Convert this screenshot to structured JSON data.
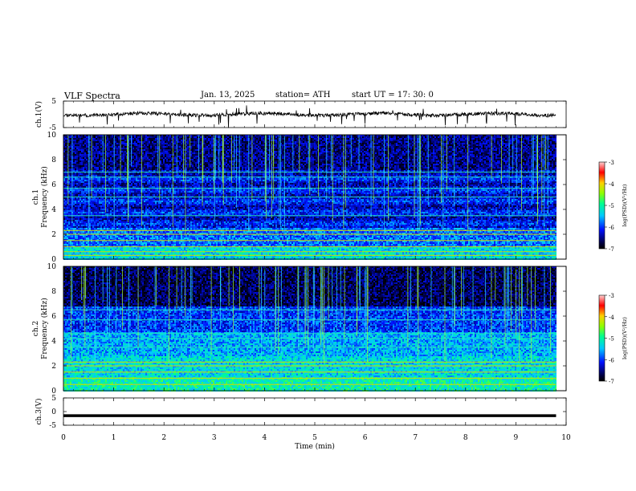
{
  "header": {
    "title": "VLF  Spectra",
    "date": "Jan. 13, 2025",
    "station": "station= ATH",
    "start": "start  UT  =   17: 30: 0"
  },
  "chart_data": [
    {
      "type": "line",
      "name": "ch1-waveform",
      "ylabel": "ch.1(V)",
      "ylim": [
        -5,
        5
      ],
      "yticks": [
        "5",
        "-5"
      ],
      "xlim": [
        0,
        10
      ],
      "approx_level": 0,
      "color": "#000000"
    },
    {
      "type": "heatmap",
      "name": "ch1-spectrogram",
      "ylabel": "ch.1\nFrequency  (kHz)",
      "ylim": [
        0,
        10
      ],
      "yticks": [
        "0",
        "2",
        "4",
        "6",
        "8",
        "10"
      ],
      "xlim": [
        0,
        9.8
      ],
      "colorbar": {
        "label": "log(PSD)(V²/Hz)",
        "range": [
          -7,
          -3
        ],
        "ticks": [
          "-3",
          "-4",
          "-5",
          "-6",
          "-7"
        ]
      },
      "persistent_lines_khz": [
        0.3,
        0.6,
        1.0,
        1.5,
        2.0,
        2.3,
        3.5,
        5.0,
        5.7,
        6.6,
        7.0
      ]
    },
    {
      "type": "heatmap",
      "name": "ch2-spectrogram",
      "ylabel": "ch.2\nFrequency  (kHz)",
      "ylim": [
        0,
        10
      ],
      "yticks": [
        "0",
        "2",
        "4",
        "6",
        "8",
        "10"
      ],
      "xlim": [
        0,
        9.8
      ],
      "colorbar": {
        "label": "log(PSD)(V²/Hz)",
        "range": [
          -7,
          -3
        ],
        "ticks": [
          "-3",
          "-4",
          "-5",
          "-6",
          "-7"
        ]
      },
      "persistent_lines_khz": [
        0.5,
        1.0,
        1.5,
        2.0,
        2.3,
        3.5,
        4.2,
        4.6,
        5.7,
        6.5
      ]
    },
    {
      "type": "line",
      "name": "ch3-waveform",
      "ylabel": "ch.3(V)",
      "ylim": [
        -5,
        5
      ],
      "yticks": [
        "5",
        "0",
        "-5"
      ],
      "xlim": [
        0,
        10
      ],
      "approx_level": -1.5,
      "color": "#000000"
    }
  ],
  "xaxis": {
    "label": "Time  (min)",
    "ticks": [
      "0",
      "1",
      "2",
      "3",
      "4",
      "5",
      "6",
      "7",
      "8",
      "9",
      "10"
    ],
    "range": [
      0,
      10
    ]
  }
}
